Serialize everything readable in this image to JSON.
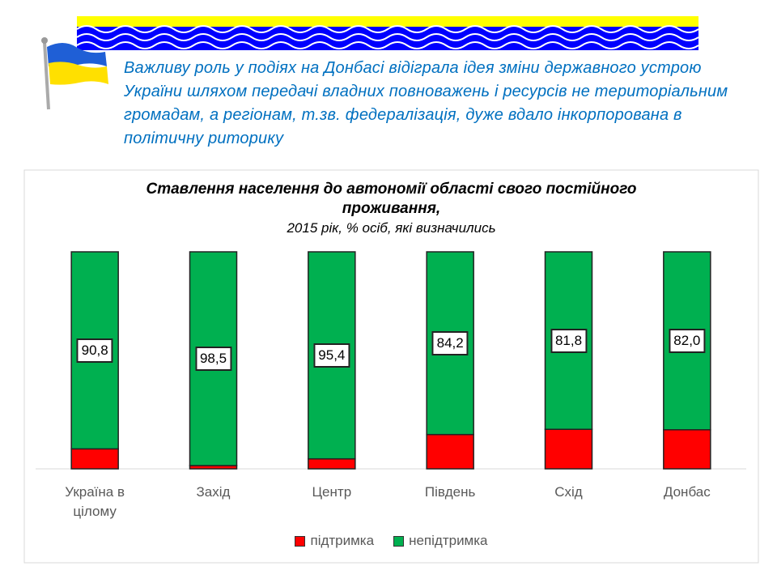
{
  "header": {
    "text": "Важливу роль у подіях на Донбасі відіграла ідея зміни державного устрою України шляхом передачі владних повноважень і ресурсів не територіальним громадам, а регіонам, т.зв. федералізація, дуже вдало інкорпорована в політичну риторику"
  },
  "chart_data": {
    "type": "bar",
    "stacked": true,
    "title": "Ставлення населення до автономії області свого постійного проживання,",
    "subtitle": "2015 рік, % осіб, які визначились",
    "categories": [
      "Україна в цілому",
      "Захід",
      "Центр",
      "Південь",
      "Схід",
      "Донбас"
    ],
    "series": [
      {
        "name": "підтримка",
        "color": "#ff0000",
        "values": [
          9.2,
          1.5,
          4.6,
          15.8,
          18.2,
          18.0
        ]
      },
      {
        "name": "непідтримка",
        "color": "#00b050",
        "values": [
          90.8,
          98.5,
          95.4,
          84.2,
          81.8,
          82.0
        ],
        "value_labels": [
          "90,8",
          "98,5",
          "95,4",
          "84,2",
          "81,8",
          "82,0"
        ]
      }
    ],
    "ylim": [
      0,
      100
    ],
    "legend": "bottom"
  }
}
